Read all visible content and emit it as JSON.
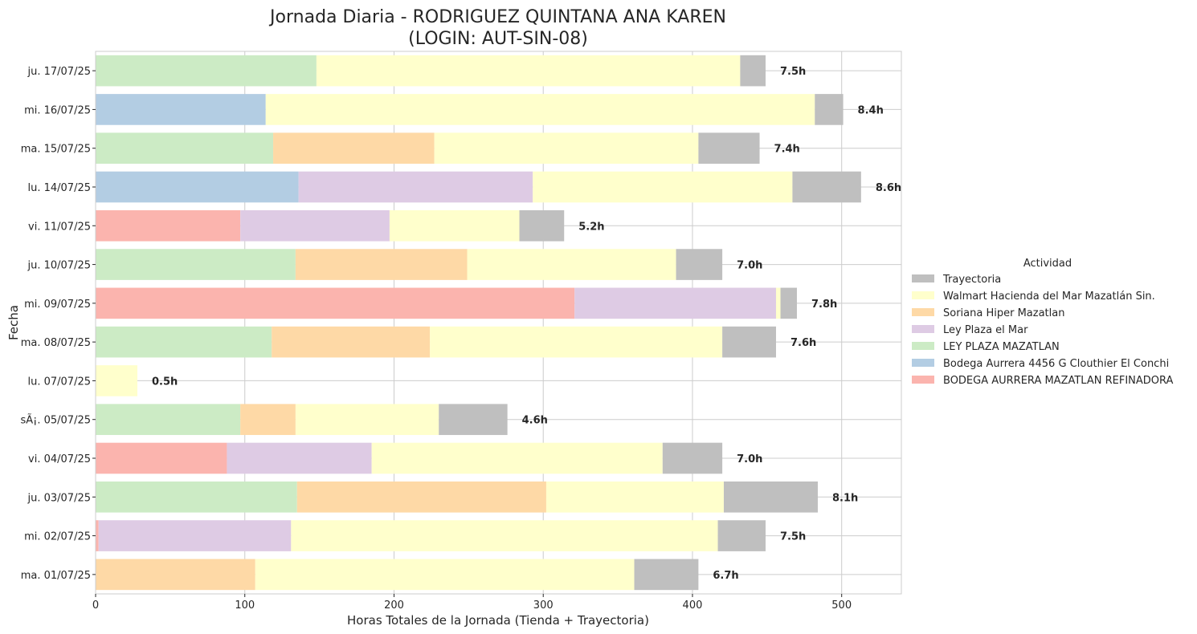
{
  "chart_data": {
    "type": "bar",
    "orientation": "horizontal",
    "stacked": true,
    "title_line1": "Jornada Diaria - RODRIGUEZ QUINTANA ANA KAREN",
    "title_line2": "(LOGIN: AUT-SIN-08)",
    "xlabel": "Horas Totales de la Jornada (Tienda + Trayectoria)",
    "ylabel": "Fecha",
    "xlim": [
      0,
      540
    ],
    "xticks": [
      0,
      100,
      200,
      300,
      400,
      500
    ],
    "grid": true,
    "legend_title": "Actividad",
    "legend_position": "right",
    "categories": [
      "ma. 01/07/25",
      "mi. 02/07/25",
      "ju. 03/07/25",
      "vi. 04/07/25",
      "sÃ¡. 05/07/25",
      "lu. 07/07/25",
      "ma. 08/07/25",
      "mi. 09/07/25",
      "ju. 10/07/25",
      "vi. 11/07/25",
      "lu. 14/07/25",
      "ma. 15/07/25",
      "mi. 16/07/25",
      "ju. 17/07/25"
    ],
    "totals": [
      "6.7h",
      "7.5h",
      "8.1h",
      "7.0h",
      "4.6h",
      "0.5h",
      "7.6h",
      "7.8h",
      "7.0h",
      "5.2h",
      "8.6h",
      "7.4h",
      "8.4h",
      "7.5h"
    ],
    "series": [
      {
        "name": "BODEGA AURRERA MAZATLAN REFINADORA",
        "color": "#fbb4ae",
        "values": [
          0,
          2,
          0,
          88,
          0,
          0,
          0,
          321,
          0,
          97,
          0,
          0,
          0,
          0
        ]
      },
      {
        "name": "Bodega Aurrera 4456 G Clouthier El Conchi",
        "color": "#b3cde3",
        "values": [
          0,
          0,
          0,
          0,
          0,
          0,
          0,
          0,
          0,
          0,
          136,
          0,
          114,
          0
        ]
      },
      {
        "name": "LEY PLAZA MAZATLAN",
        "color": "#ccebc5",
        "values": [
          0,
          0,
          135,
          0,
          97,
          0,
          118,
          0,
          134,
          0,
          0,
          119,
          0,
          148
        ]
      },
      {
        "name": "Ley Plaza el Mar",
        "color": "#decbe4",
        "values": [
          0,
          129,
          0,
          97,
          0,
          0,
          0,
          135,
          0,
          100,
          157,
          0,
          0,
          0
        ]
      },
      {
        "name": "Soriana Hiper Mazatlan",
        "color": "#fed9a6",
        "values": [
          107,
          0,
          167,
          0,
          37,
          0,
          106,
          0,
          115,
          0,
          0,
          108,
          0,
          0
        ]
      },
      {
        "name": "Walmart Hacienda del Mar Mazatlán Sin.",
        "color": "#ffffcc",
        "values": [
          254,
          286,
          119,
          195,
          96,
          28,
          196,
          3,
          140,
          87,
          174,
          177,
          368,
          284
        ]
      },
      {
        "name": "Trayectoria",
        "color": "#bfbfbf",
        "values": [
          43,
          32,
          63,
          40,
          46,
          0,
          36,
          11,
          31,
          30,
          46,
          41,
          19,
          17
        ]
      }
    ]
  }
}
